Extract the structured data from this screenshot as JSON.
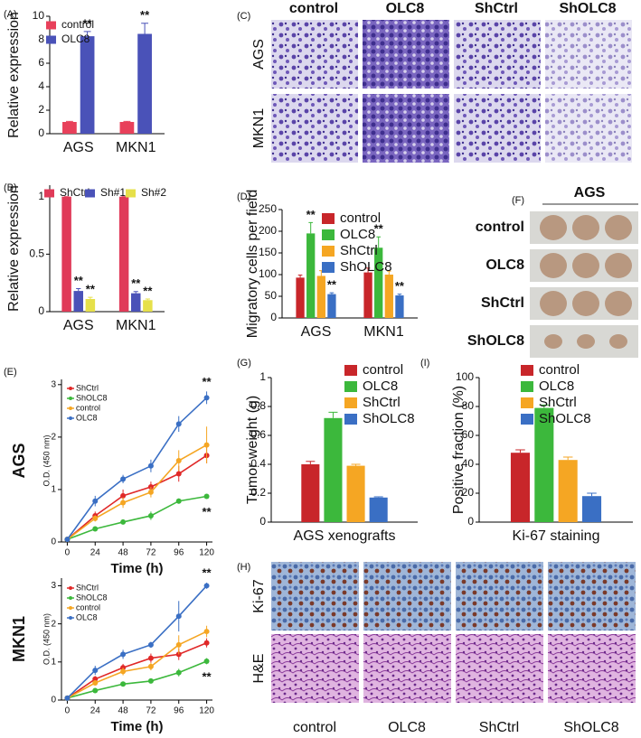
{
  "chart_data": [
    {
      "type": "bar",
      "panel": "(A)",
      "ylabel": "Relative expression",
      "categories": [
        "AGS",
        "MKN1"
      ],
      "series": [
        {
          "name": "control",
          "color": "#e8405a",
          "values": [
            1,
            1
          ],
          "errors": [
            0.05,
            0.05
          ],
          "annotations": [
            null,
            null
          ]
        },
        {
          "name": "OLC8",
          "color": "#4a52b8",
          "values": [
            8.3,
            8.5
          ],
          "errors": [
            0.4,
            0.9
          ],
          "annotations": [
            "**",
            "**"
          ]
        }
      ],
      "ylim": [
        0,
        10
      ],
      "yticks": [
        0,
        2,
        4,
        6,
        8,
        10
      ],
      "legend": "upper left"
    },
    {
      "type": "bar",
      "panel": "(B)",
      "ylabel": "Relative expression",
      "categories": [
        "AGS",
        "MKN1"
      ],
      "series": [
        {
          "name": "ShCtrl",
          "color": "#e03a58",
          "values": [
            1,
            1
          ],
          "errors": [
            0,
            0
          ],
          "annotations": [
            null,
            null
          ]
        },
        {
          "name": "Sh#1",
          "color": "#4a52b8",
          "values": [
            0.18,
            0.16
          ],
          "errors": [
            0.02,
            0.015
          ],
          "annotations": [
            "**",
            "**"
          ]
        },
        {
          "name": "Sh#2",
          "color": "#e6e04a",
          "values": [
            0.11,
            0.1
          ],
          "errors": [
            0.015,
            0.01
          ],
          "annotations": [
            "**",
            "**"
          ]
        }
      ],
      "ylim": [
        0,
        1.1
      ],
      "yticks": [
        0,
        0.5,
        1
      ],
      "legend": "upper left"
    },
    {
      "type": "bar",
      "panel": "(D)",
      "ylabel": "Migratory cells per field",
      "categories": [
        "AGS",
        "MKN1"
      ],
      "series": [
        {
          "name": "control",
          "color": "#c8262a",
          "values": [
            93,
            105
          ],
          "errors": [
            6,
            10
          ],
          "annotations": [
            null,
            null
          ]
        },
        {
          "name": "OLC8",
          "color": "#3cb83c",
          "values": [
            195,
            162
          ],
          "errors": [
            25,
            25
          ],
          "annotations": [
            "**",
            "**"
          ]
        },
        {
          "name": "ShCtrl",
          "color": "#f5a623",
          "values": [
            97,
            100
          ],
          "errors": [
            12,
            8
          ],
          "annotations": [
            null,
            null
          ]
        },
        {
          "name": "ShOLC8",
          "color": "#3a6fc4",
          "values": [
            55,
            52
          ],
          "errors": [
            3,
            3
          ],
          "annotations": [
            "**",
            "**"
          ]
        }
      ],
      "ylim": [
        0,
        250
      ],
      "yticks": [
        0,
        50,
        100,
        150,
        200,
        250
      ],
      "legend": "upper right"
    },
    {
      "type": "line",
      "panel": "(E)",
      "side_label": "AGS",
      "ylabel": "O.D. (450 nm)",
      "xlabel": "Time (h)",
      "x": [
        0,
        24,
        48,
        72,
        96,
        120
      ],
      "xlim": [
        -5,
        125
      ],
      "xticks": [
        0,
        24,
        48,
        72,
        96,
        120
      ],
      "series": [
        {
          "name": "ShCtrl",
          "color": "#e02828",
          "values": [
            0.05,
            0.5,
            0.88,
            1.05,
            1.3,
            1.65
          ],
          "errors": [
            0.02,
            0.08,
            0.12,
            0.1,
            0.15,
            0.15
          ],
          "annotations": [
            null,
            null,
            null,
            null,
            null,
            null
          ]
        },
        {
          "name": "ShOLC8",
          "color": "#3cb83c",
          "values": [
            0.05,
            0.25,
            0.38,
            0.5,
            0.78,
            0.87
          ],
          "errors": [
            0.02,
            0.04,
            0.04,
            0.08,
            0.05,
            0.04
          ],
          "annotations": [
            null,
            null,
            null,
            null,
            null,
            "**"
          ]
        },
        {
          "name": "control",
          "color": "#f5a623",
          "values": [
            0.05,
            0.45,
            0.75,
            0.95,
            1.55,
            1.85
          ],
          "errors": [
            0.02,
            0.06,
            0.1,
            0.1,
            0.2,
            0.35
          ],
          "annotations": [
            null,
            null,
            null,
            null,
            null,
            null
          ]
        },
        {
          "name": "OLC8",
          "color": "#3a6fc4",
          "values": [
            0.05,
            0.78,
            1.2,
            1.45,
            2.25,
            2.75
          ],
          "errors": [
            0.02,
            0.1,
            0.08,
            0.12,
            0.15,
            0.12
          ],
          "annotations": [
            null,
            null,
            null,
            null,
            null,
            "**"
          ]
        }
      ],
      "ylim": [
        0,
        3.1
      ],
      "yticks": [
        0,
        1,
        2,
        3
      ],
      "legend": "upper left"
    },
    {
      "type": "line",
      "side_label": "MKN1",
      "ylabel": "O.D. (450 nm)",
      "xlabel": "Time (h)",
      "x": [
        0,
        24,
        48,
        72,
        96,
        120
      ],
      "xlim": [
        -5,
        125
      ],
      "xticks": [
        0,
        24,
        48,
        72,
        96,
        120
      ],
      "series": [
        {
          "name": "ShCtrl",
          "color": "#e02828",
          "values": [
            0.05,
            0.55,
            0.85,
            1.1,
            1.2,
            1.5
          ],
          "errors": [
            0.02,
            0.08,
            0.1,
            0.12,
            0.15,
            0.12
          ],
          "annotations": [
            null,
            null,
            null,
            null,
            null,
            null
          ]
        },
        {
          "name": "ShOLC8",
          "color": "#3cb83c",
          "values": [
            0.05,
            0.25,
            0.42,
            0.5,
            0.72,
            1.02
          ],
          "errors": [
            0.02,
            0.04,
            0.04,
            0.05,
            0.1,
            0.08
          ],
          "annotations": [
            null,
            null,
            null,
            null,
            null,
            "**"
          ]
        },
        {
          "name": "control",
          "color": "#f5a623",
          "values": [
            0.05,
            0.45,
            0.75,
            0.88,
            1.45,
            1.8
          ],
          "errors": [
            0.02,
            0.06,
            0.1,
            0.1,
            0.25,
            0.15
          ],
          "annotations": [
            null,
            null,
            null,
            null,
            null,
            null
          ]
        },
        {
          "name": "OLC8",
          "color": "#3a6fc4",
          "values": [
            0.05,
            0.78,
            1.2,
            1.45,
            2.2,
            3.0
          ],
          "errors": [
            0.02,
            0.12,
            0.12,
            0.08,
            0.4,
            0.08
          ],
          "annotations": [
            null,
            null,
            null,
            null,
            null,
            "**"
          ]
        }
      ],
      "ylim": [
        0,
        3.2
      ],
      "yticks": [
        0,
        1,
        2,
        3
      ],
      "legend": "upper left"
    },
    {
      "type": "bar",
      "panel": "(G)",
      "ylabel": "Tumor weight (g)",
      "xlabel": "AGS xenografts",
      "categories": [
        null
      ],
      "series": [
        {
          "name": "control",
          "color": "#c8262a",
          "values": [
            0.4
          ],
          "errors": [
            0.02
          ]
        },
        {
          "name": "OLC8",
          "color": "#3cb83c",
          "values": [
            0.72
          ],
          "errors": [
            0.04
          ]
        },
        {
          "name": "ShCtrl",
          "color": "#f5a623",
          "values": [
            0.39
          ],
          "errors": [
            0.01
          ]
        },
        {
          "name": "ShOLC8",
          "color": "#3a6fc4",
          "values": [
            0.17
          ],
          "errors": [
            0.005
          ]
        }
      ],
      "ylim": [
        0,
        1
      ],
      "yticks": [
        0,
        0.2,
        0.4,
        0.6,
        0.8,
        1
      ],
      "legend": "upper right"
    },
    {
      "type": "bar",
      "panel": "(I)",
      "ylabel": "Positive fraction (%)",
      "xlabel": "Ki-67 staining",
      "categories": [
        null
      ],
      "series": [
        {
          "name": "control",
          "color": "#c8262a",
          "values": [
            48
          ],
          "errors": [
            2
          ]
        },
        {
          "name": "OLC8",
          "color": "#3cb83c",
          "values": [
            79
          ],
          "errors": [
            2
          ]
        },
        {
          "name": "ShCtrl",
          "color": "#f5a623",
          "values": [
            43
          ],
          "errors": [
            2
          ]
        },
        {
          "name": "ShOLC8",
          "color": "#3a6fc4",
          "values": [
            18
          ],
          "errors": [
            2
          ]
        }
      ],
      "ylim": [
        0,
        100
      ],
      "yticks": [
        0,
        20,
        40,
        60,
        80,
        100
      ],
      "legend": "upper right"
    }
  ],
  "image_panels": {
    "C": {
      "panel": "(C)",
      "columns": [
        "control",
        "OLC8",
        "ShCtrl",
        "ShOLC8"
      ],
      "rows": [
        "AGS",
        "MKN1"
      ]
    },
    "F": {
      "panel": "(F)",
      "title": "AGS",
      "rows": [
        "control",
        "OLC8",
        "ShCtrl",
        "ShOLC8"
      ]
    },
    "H": {
      "panel": "(H)",
      "columns": [
        "control",
        "OLC8",
        "ShCtrl",
        "ShOLC8"
      ],
      "rows": [
        "Ki-67",
        "H&E"
      ]
    }
  }
}
